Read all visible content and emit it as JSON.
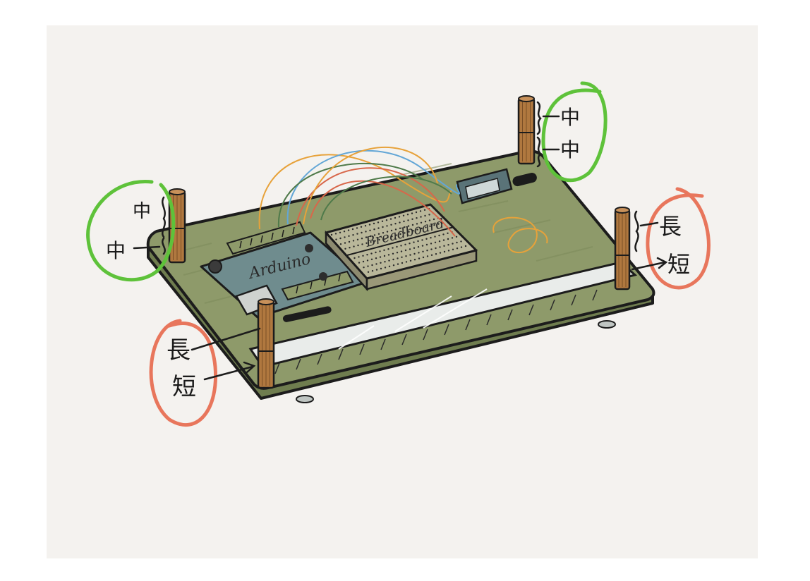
{
  "labels": {
    "arduino": "Arduino",
    "breadboard": "Breadboard",
    "post_front_left_top": "長",
    "post_front_left_bottom": "短",
    "post_front_right_top": "長",
    "post_front_right_bottom": "短",
    "post_back_left_top": "中",
    "post_back_left_bottom": "中",
    "post_back_right_top": "中",
    "post_back_right_bottom": "中"
  },
  "colors": {
    "paper": "#f4f2ef",
    "board_green": "#8e9a6a",
    "board_green_dark": "#6f7d4f",
    "arduino_blue": "#6f8c8e",
    "breadboard": "#b9b79a",
    "standoff": "#b0783f",
    "circle_green": "#5ec23a",
    "circle_red": "#e8765c",
    "outline": "#1c1c1c",
    "wire_orange": "#e7a23a",
    "wire_blue": "#62a6d6",
    "wire_green": "#4f7a4a",
    "wire_red": "#d8674a"
  },
  "icons": {
    "pcb_board": "green-base-board",
    "arduino": "arduino-board",
    "breadboard": "breadboard",
    "sensor": "sensor-module",
    "standoff": "standoff-post"
  }
}
